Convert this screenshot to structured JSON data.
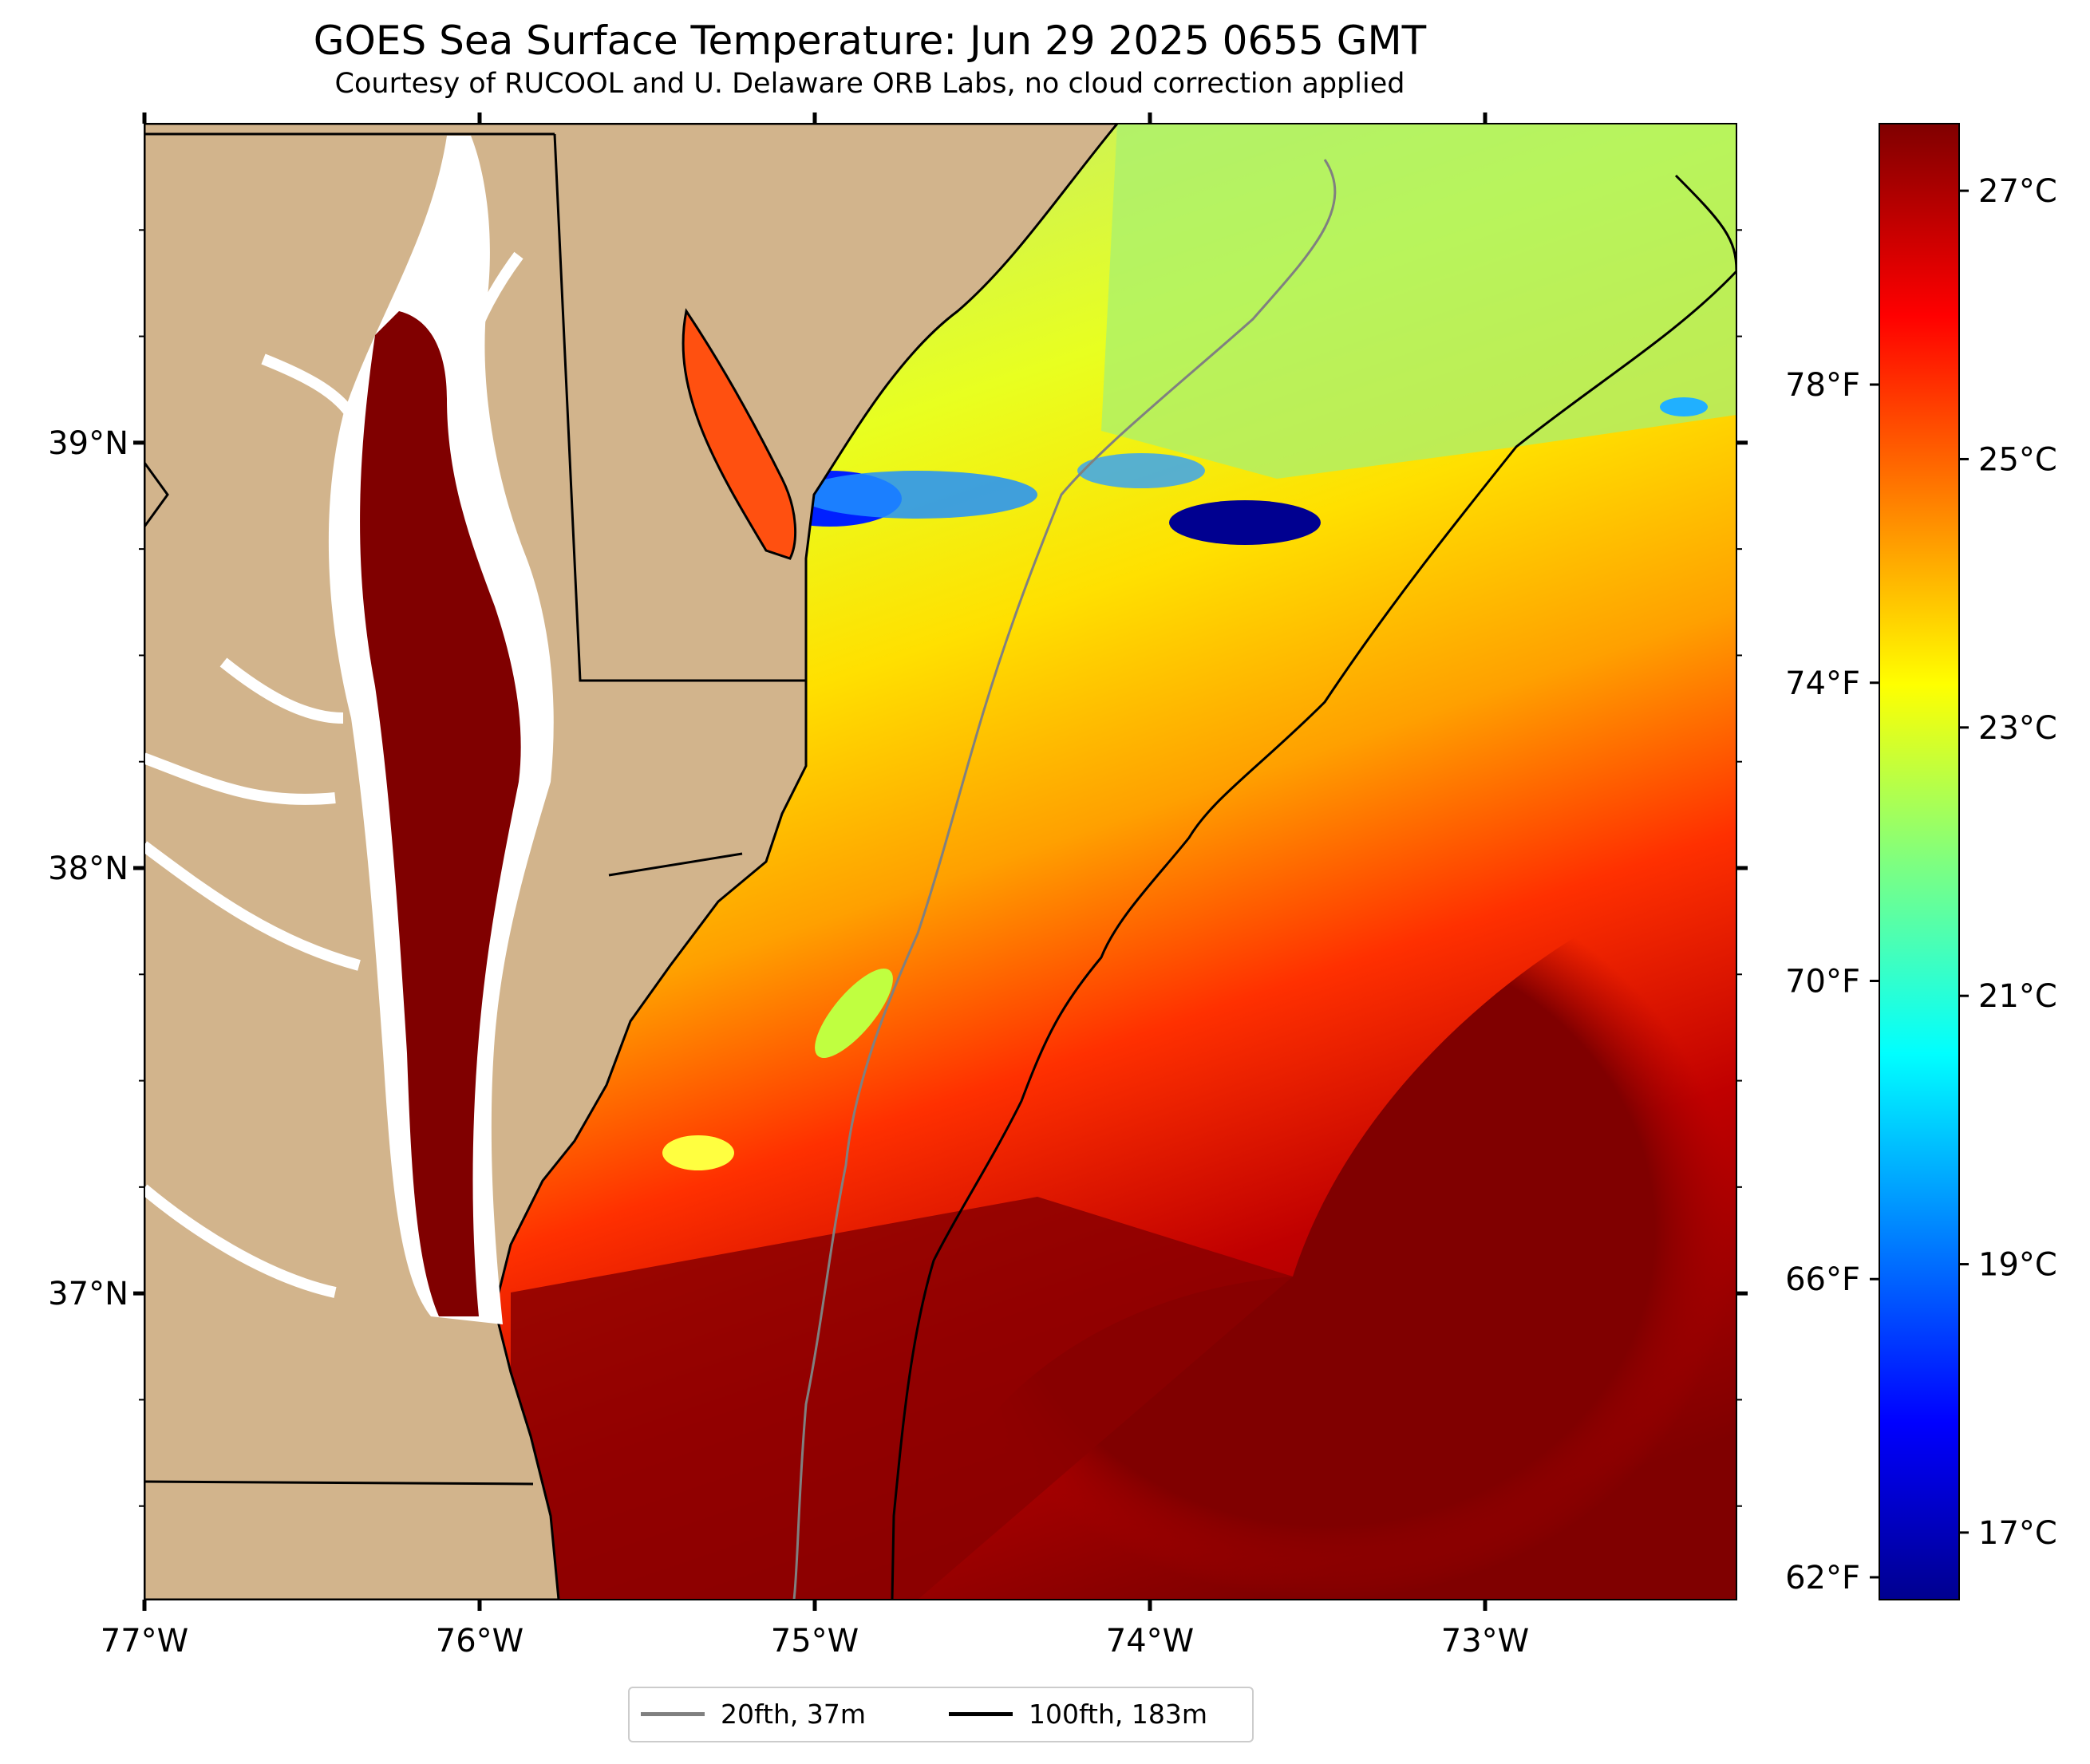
{
  "title": "GOES Sea Surface Temperature: Jun 29 2025 0655 GMT",
  "subtitle": "Courtesy of RUCOOL and U. Delaware ORB Labs, no cloud correction applied",
  "map": {
    "lon_range": [
      -77.0,
      -72.25
    ],
    "lat_range": [
      36.28,
      39.75
    ],
    "x_ticks": [
      "77°W",
      "76°W",
      "75°W",
      "74°W",
      "73°W"
    ],
    "x_tick_values": [
      -77,
      -76,
      -75,
      -74,
      -73
    ],
    "y_ticks": [
      "39°N",
      "38°N",
      "37°N"
    ],
    "y_tick_values": [
      39,
      38,
      37
    ],
    "land_color": "#d2b48c",
    "no_data_color": "#ffffff"
  },
  "colorbar": {
    "celsius_labels": [
      "27°C",
      "25°C",
      "23°C",
      "21°C",
      "19°C",
      "17°C"
    ],
    "celsius_values": [
      27,
      25,
      23,
      21,
      19,
      17
    ],
    "fahrenheit_labels": [
      "78°F",
      "74°F",
      "70°F",
      "66°F",
      "62°F"
    ],
    "fahrenheit_values": [
      78,
      74,
      70,
      66,
      62
    ],
    "range_c": [
      16.5,
      27.5
    ],
    "colormap": "jet"
  },
  "legend": [
    {
      "label": "20fth, 37m",
      "color": "#808080"
    },
    {
      "label": "100fth, 183m",
      "color": "#000000"
    }
  ]
}
